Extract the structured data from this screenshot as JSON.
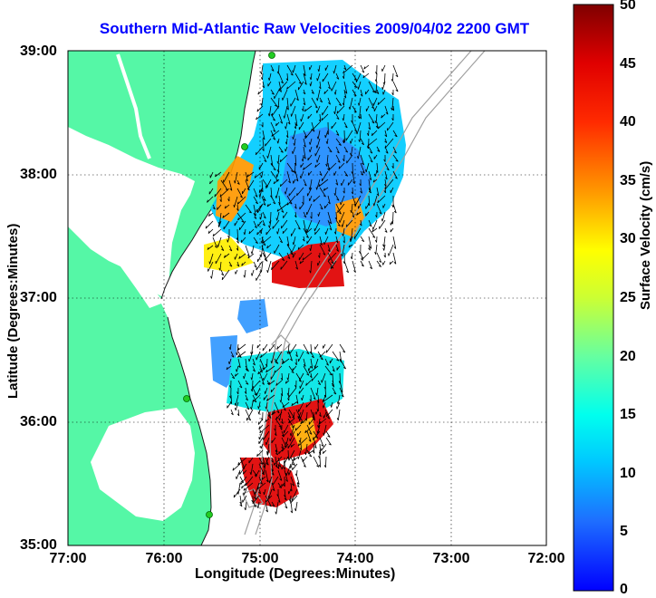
{
  "title": "Southern Mid-Atlantic Raw Velocities 2009/04/02 2200 GMT",
  "xaxis": {
    "label": "Longitude (Degrees:Minutes)",
    "ticks": [
      "77:00",
      "76:00",
      "75:00",
      "74:00",
      "73:00",
      "72:00"
    ]
  },
  "yaxis": {
    "label": "Latitude (Degrees:Minutes)",
    "ticks": [
      "39:00",
      "38:00",
      "37:00",
      "36:00",
      "35:00"
    ]
  },
  "colorbar": {
    "label": "Surface Velocity (cm/s)",
    "ticks": [
      "50",
      "45",
      "40",
      "35",
      "30",
      "25",
      "20",
      "15",
      "10",
      "5",
      "0"
    ],
    "colors": [
      "#0000ff",
      "#00bfff",
      "#00ffff",
      "#66ffb3",
      "#ffff00",
      "#ff9900",
      "#ff0000",
      "#7f0000"
    ]
  },
  "colors": {
    "land": "#55f7a6",
    "water": "#ffffff",
    "station": "#22cc22",
    "bathymetry": "#a0a0a0"
  }
}
